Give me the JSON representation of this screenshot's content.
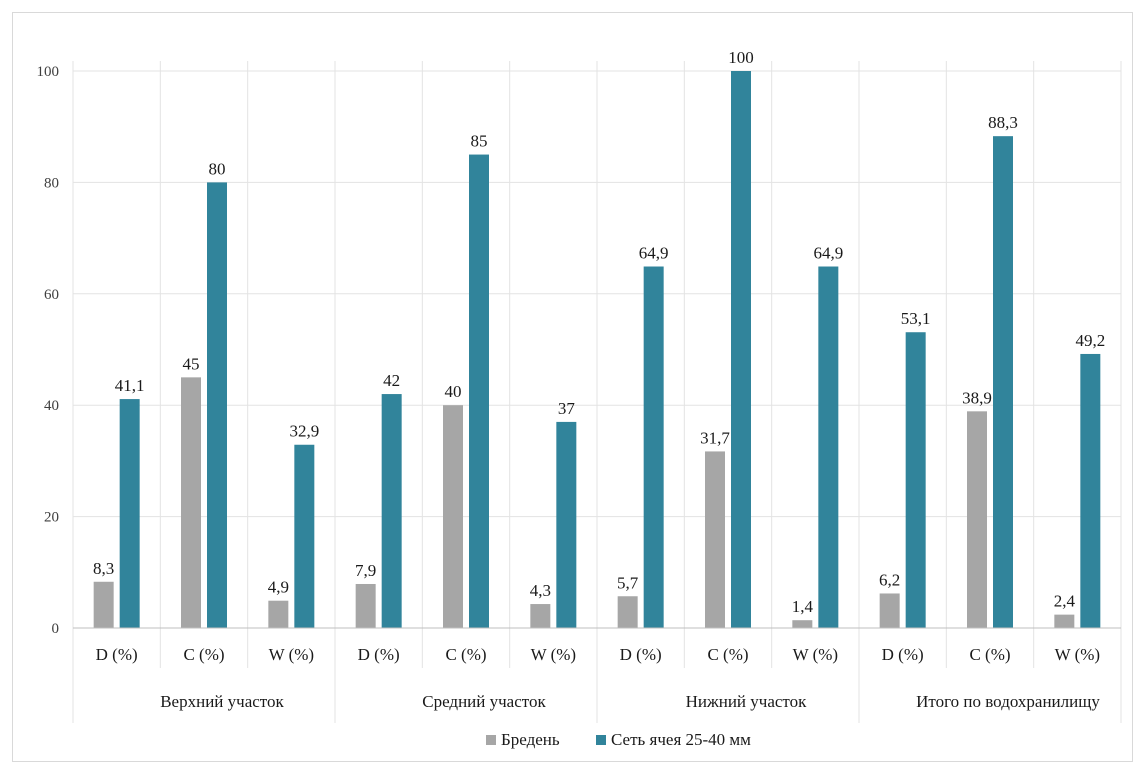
{
  "chart_data": {
    "type": "bar",
    "categories": [
      "D (%)",
      "C (%)",
      "W (%)",
      "D (%)",
      "C (%)",
      "W (%)",
      "D (%)",
      "C (%)",
      "W (%)",
      "D (%)",
      "C (%)",
      "W (%)"
    ],
    "groups": [
      "Верхний участок",
      "Средний участок",
      "Нижний участок",
      "Итого по водохранилищу"
    ],
    "series": [
      {
        "name": "Бредень",
        "color": "#a6a6a6",
        "values": [
          8.3,
          45,
          4.9,
          7.9,
          40,
          4.3,
          5.7,
          31.7,
          1.4,
          6.2,
          38.9,
          2.4
        ],
        "labels": [
          "8,3",
          "45",
          "4,9",
          "7,9",
          "40",
          "4,3",
          "5,7",
          "31,7",
          "1,4",
          "6,2",
          "38,9",
          "2,4"
        ]
      },
      {
        "name": "Сеть ячея 25-40 мм",
        "color": "#31849b",
        "values": [
          41.1,
          80,
          32.9,
          42,
          85,
          37,
          64.9,
          100,
          64.9,
          53.1,
          88.3,
          49.2
        ],
        "labels": [
          "41,1",
          "80",
          "32,9",
          "42",
          "85",
          "37",
          "64,9",
          "100",
          "64,9",
          "53,1",
          "88,3",
          "49,2"
        ]
      }
    ],
    "ylim": [
      0,
      100
    ],
    "yticks": [
      0,
      20,
      40,
      60,
      80,
      100
    ],
    "grid": true,
    "legend_position": "bottom",
    "title": "",
    "xlabel": "",
    "ylabel": ""
  }
}
